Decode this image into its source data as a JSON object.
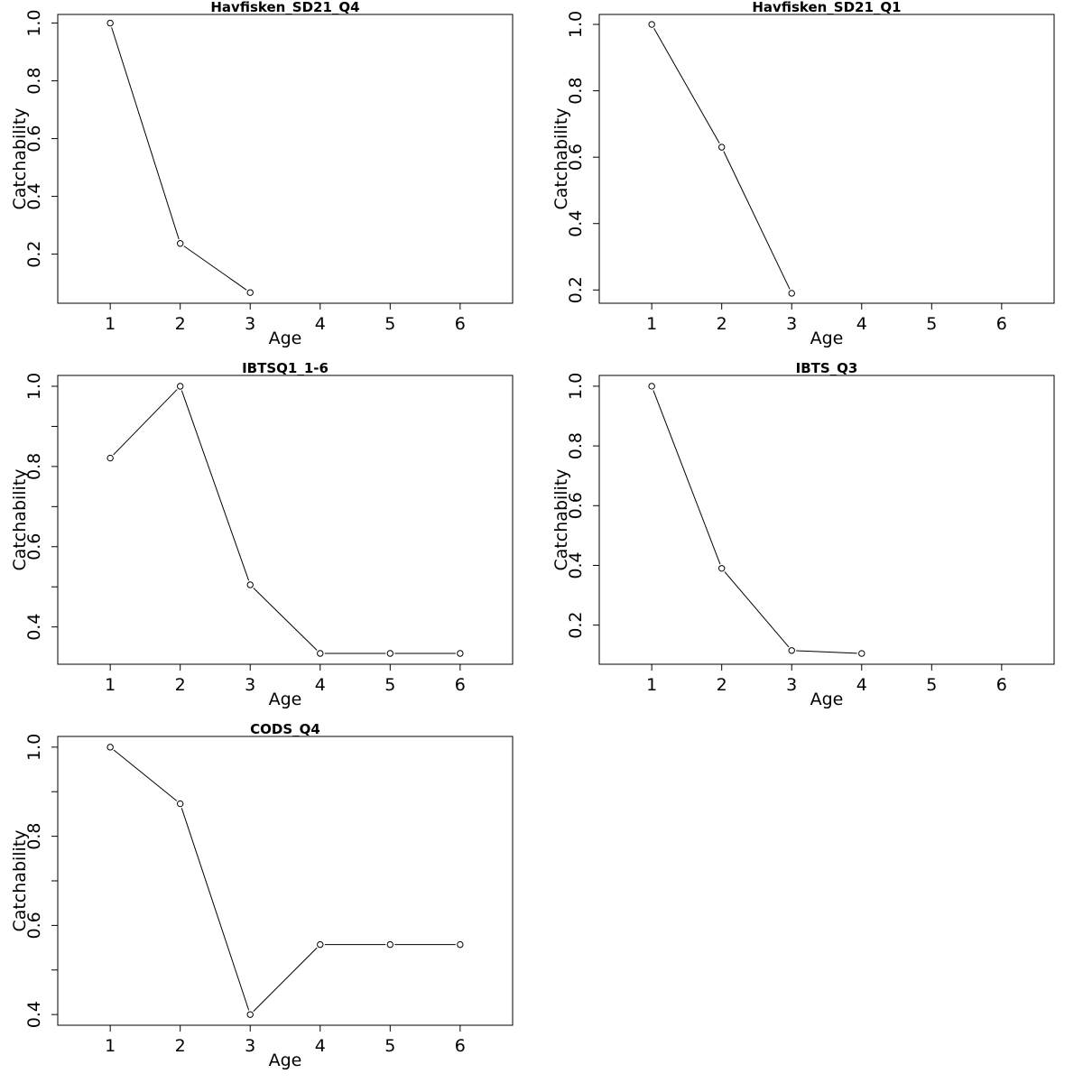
{
  "chart_data": [
    {
      "type": "line",
      "title": "Havfisken_SD21_Q4",
      "xlabel": "Age",
      "ylabel": "Catchability",
      "x": [
        1,
        2,
        3
      ],
      "values": [
        1.0,
        0.237,
        0.067
      ],
      "xlim": [
        0.25,
        6.75
      ],
      "ylim": [
        0.03,
        1.03
      ],
      "xticks": [
        "1",
        "2",
        "3",
        "4",
        "5",
        "6"
      ],
      "yticks": [
        0.2,
        0.4,
        0.6,
        0.8,
        1.0
      ],
      "ytick_labels": [
        "0.2",
        "0.4",
        "0.6",
        "0.8",
        "1.0"
      ],
      "minor_yticks": [],
      "grid": false,
      "legend": "none"
    },
    {
      "type": "line",
      "title": "Havfisken_SD21_Q1",
      "xlabel": "Age",
      "ylabel": "Catchability",
      "x": [
        1,
        2,
        3
      ],
      "values": [
        1.0,
        0.63,
        0.19
      ],
      "xlim": [
        0.25,
        6.75
      ],
      "ylim": [
        0.16,
        1.03
      ],
      "xticks": [
        "1",
        "2",
        "3",
        "4",
        "5",
        "6"
      ],
      "yticks": [
        0.2,
        0.4,
        0.6,
        0.8,
        1.0
      ],
      "ytick_labels": [
        "0.2",
        "0.4",
        "0.6",
        "0.8",
        "1.0"
      ],
      "minor_yticks": [],
      "grid": false,
      "legend": "none"
    },
    {
      "type": "line",
      "title": "IBTSQ1_1-6",
      "xlabel": "Age",
      "ylabel": "Catchability",
      "x": [
        1,
        2,
        3,
        4,
        5,
        6
      ],
      "values": [
        0.821,
        1.0,
        0.505,
        0.334,
        0.334,
        0.334
      ],
      "xlim": [
        0.25,
        6.75
      ],
      "ylim": [
        0.307,
        1.027
      ],
      "xticks": [
        "1",
        "2",
        "3",
        "4",
        "5",
        "6"
      ],
      "yticks": [
        0.4,
        0.6,
        0.8,
        1.0
      ],
      "ytick_labels": [
        "0.4",
        "0.6",
        "0.8",
        "1.0"
      ],
      "minor_yticks": [
        0.5,
        0.7,
        0.9
      ],
      "grid": false,
      "legend": "none"
    },
    {
      "type": "line",
      "title": "IBTS_Q3",
      "xlabel": "Age",
      "ylabel": "Catchability",
      "x": [
        1,
        2,
        3,
        4
      ],
      "values": [
        1.0,
        0.39,
        0.115,
        0.105
      ],
      "xlim": [
        0.25,
        6.75
      ],
      "ylim": [
        0.069,
        1.036
      ],
      "xticks": [
        "1",
        "2",
        "3",
        "4",
        "5",
        "6"
      ],
      "yticks": [
        0.2,
        0.4,
        0.6,
        0.8,
        1.0
      ],
      "ytick_labels": [
        "0.2",
        "0.4",
        "0.6",
        "0.8",
        "1.0"
      ],
      "minor_yticks": [],
      "grid": false,
      "legend": "none"
    },
    {
      "type": "line",
      "title": "CODS_Q4",
      "xlabel": "Age",
      "ylabel": "Catchability",
      "x": [
        1,
        2,
        3,
        4,
        5,
        6
      ],
      "values": [
        1.0,
        0.873,
        0.4,
        0.557,
        0.557,
        0.557
      ],
      "xlim": [
        0.25,
        6.75
      ],
      "ylim": [
        0.376,
        1.024
      ],
      "xticks": [
        "1",
        "2",
        "3",
        "4",
        "5",
        "6"
      ],
      "yticks": [
        0.4,
        0.6,
        0.8,
        1.0
      ],
      "ytick_labels": [
        "0.4",
        "0.6",
        "0.8",
        "1.0"
      ],
      "minor_yticks": [
        0.5,
        0.7,
        0.9
      ],
      "grid": false,
      "legend": "none"
    }
  ]
}
